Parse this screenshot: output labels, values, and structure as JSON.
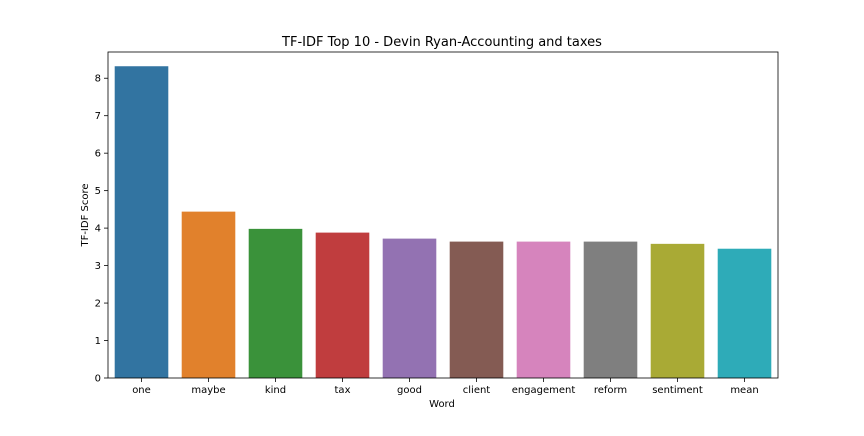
{
  "chart_data": {
    "type": "bar",
    "title": "TF-IDF Top 10 - Devin Ryan-Accounting and taxes",
    "xlabel": "Word",
    "ylabel": "TF-IDF Score",
    "categories": [
      "one",
      "maybe",
      "kind",
      "tax",
      "good",
      "client",
      "engagement",
      "reform",
      "sentiment",
      "mean"
    ],
    "values": [
      8.32,
      4.44,
      3.98,
      3.88,
      3.72,
      3.64,
      3.64,
      3.64,
      3.58,
      3.45
    ],
    "colors": [
      "#3274a1",
      "#e1812c",
      "#3a923a",
      "#c03d3e",
      "#9372b2",
      "#845b53",
      "#d684bd",
      "#7f7f7f",
      "#a9aa35",
      "#2eabb8"
    ],
    "ylim": [
      0,
      8.7
    ],
    "yticks": [
      0,
      1,
      2,
      3,
      4,
      5,
      6,
      7,
      8
    ],
    "grid": false,
    "legend": "none"
  }
}
